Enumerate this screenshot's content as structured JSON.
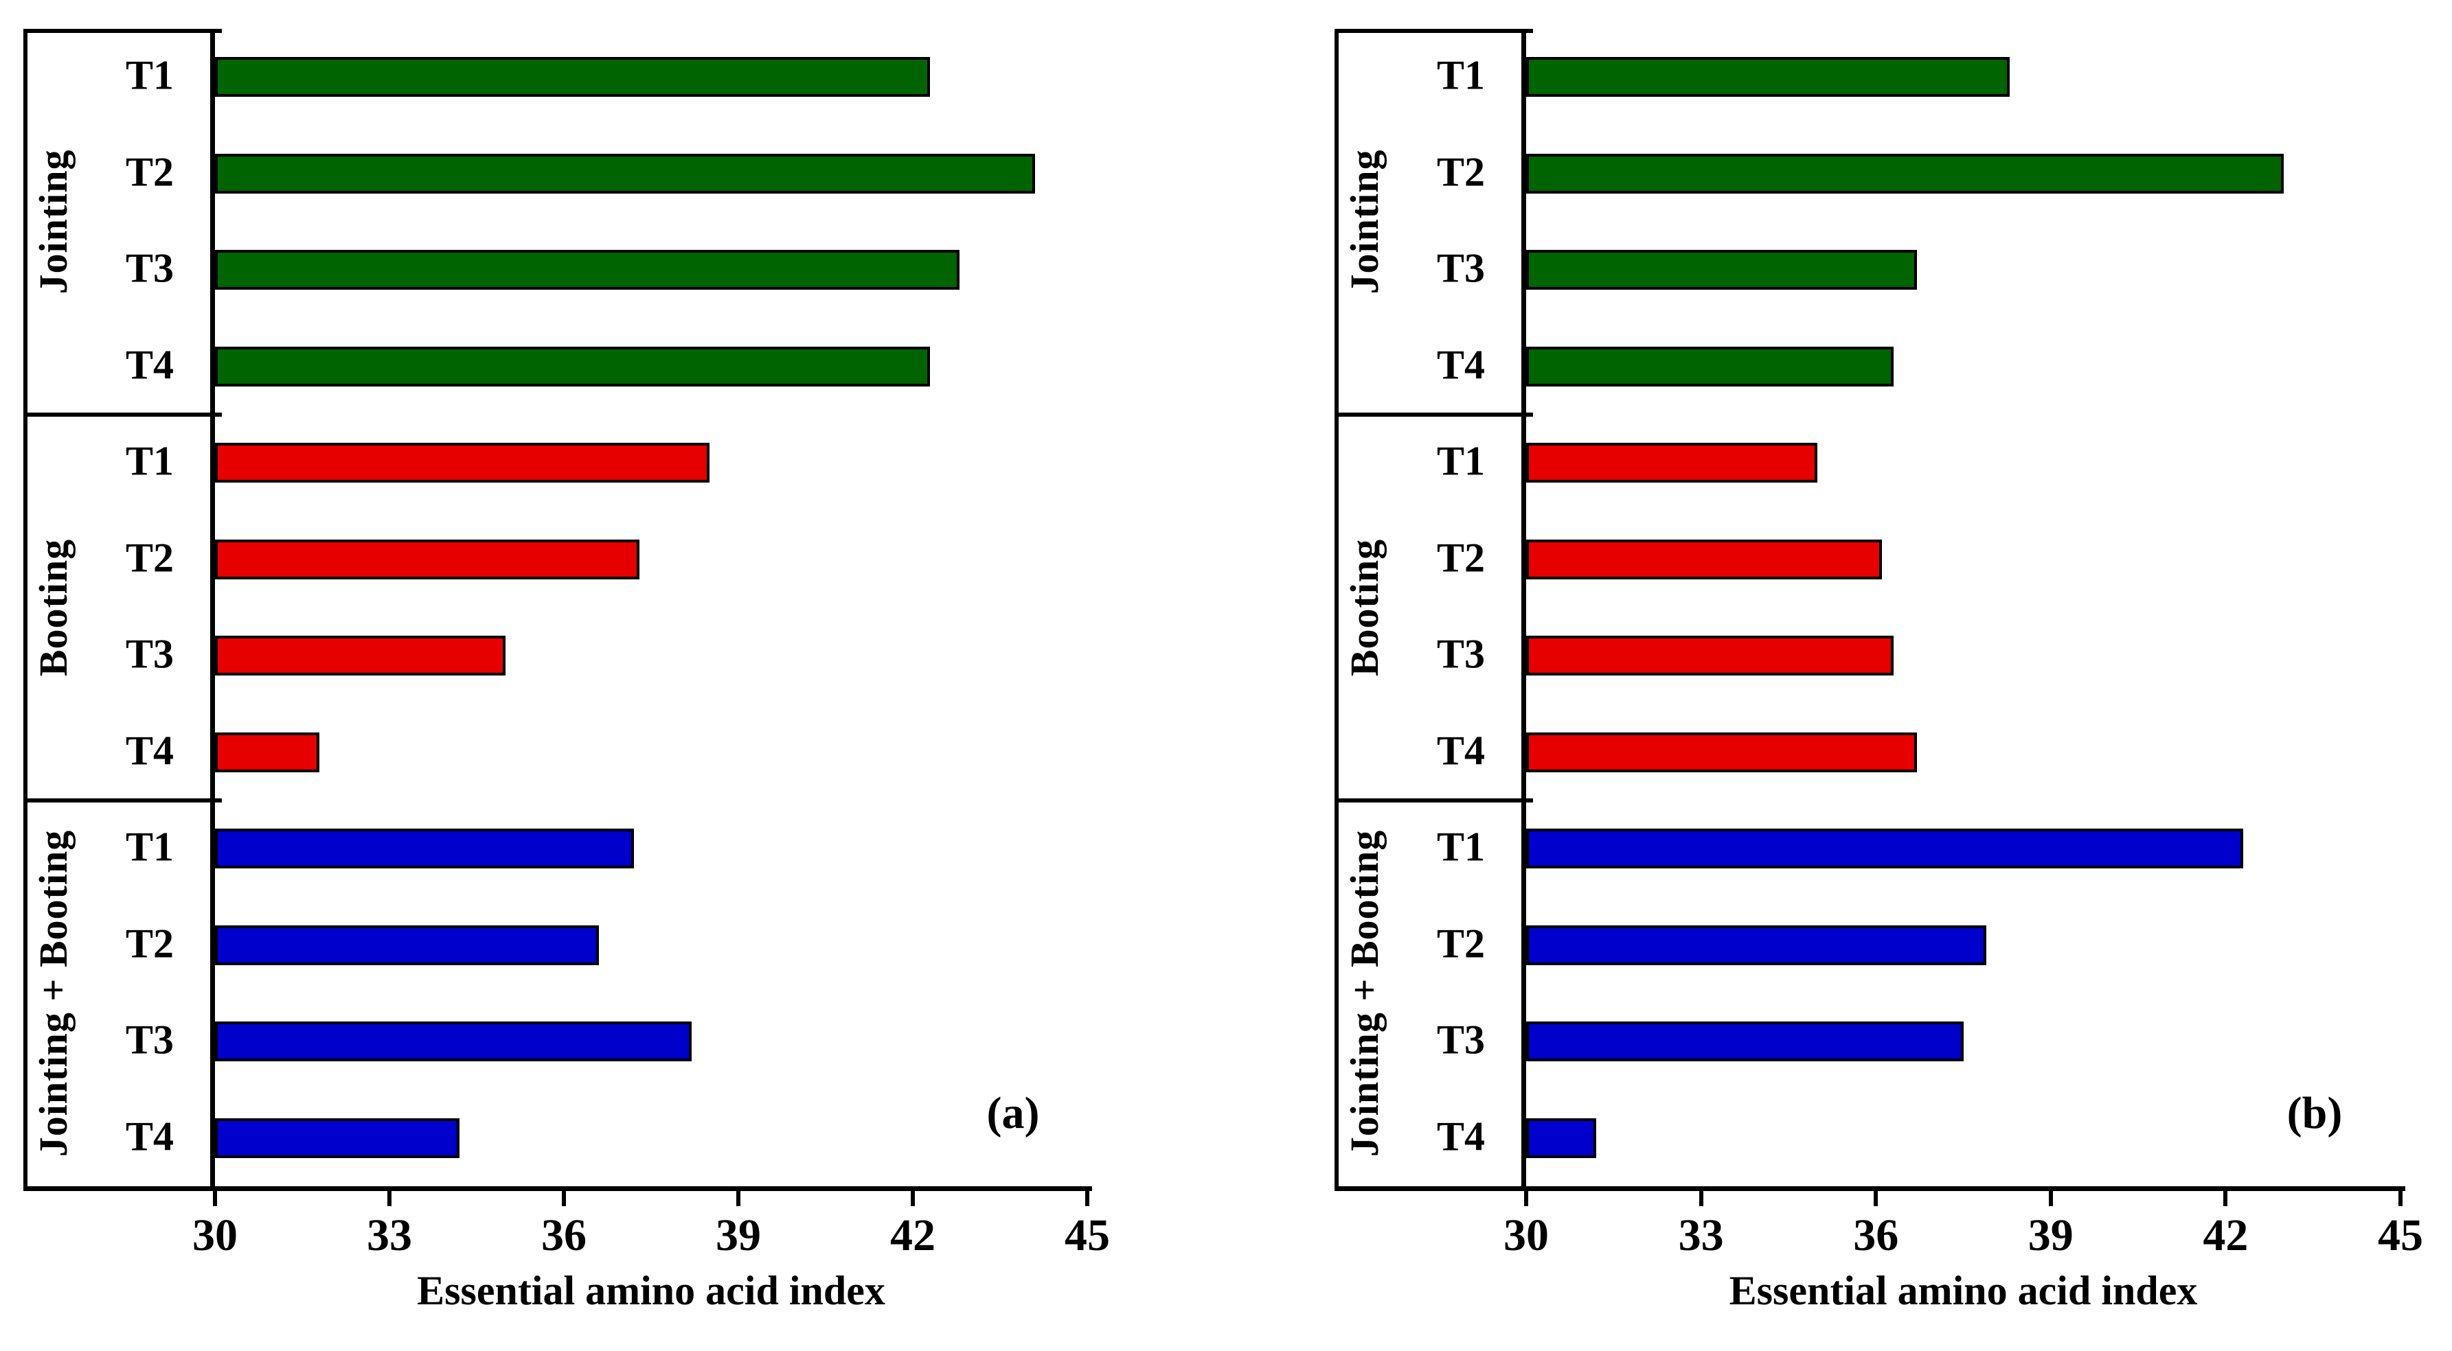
{
  "figure": {
    "background": "#ffffff",
    "axis_color": "#000000",
    "text_color": "#000000"
  },
  "chart_data": [
    {
      "type": "bar",
      "orientation": "horizontal",
      "panel_label": "(a)",
      "xlabel": "Essential amino acid index",
      "xlim": [
        30,
        45
      ],
      "xticks": [
        30,
        33,
        36,
        39,
        42,
        45
      ],
      "grid": false,
      "legend": "none",
      "bar_labels": [
        "T1",
        "T2",
        "T3",
        "T4"
      ],
      "groups": [
        {
          "name": "Jointing",
          "color": "#006400",
          "values": [
            42.3,
            44.1,
            42.8,
            42.3
          ]
        },
        {
          "name": "Booting",
          "color": "#e60000",
          "values": [
            38.5,
            37.3,
            35.0,
            31.8
          ]
        },
        {
          "name": "Jointing + Booting",
          "color": "#0000cd",
          "values": [
            37.2,
            36.6,
            38.2,
            34.2
          ]
        }
      ]
    },
    {
      "type": "bar",
      "orientation": "horizontal",
      "panel_label": "(b)",
      "xlabel": "Essential amino acid index",
      "xlim": [
        30,
        45
      ],
      "xticks": [
        30,
        33,
        36,
        39,
        42,
        45
      ],
      "grid": false,
      "legend": "none",
      "bar_labels": [
        "T1",
        "T2",
        "T3",
        "T4"
      ],
      "groups": [
        {
          "name": "Jointing",
          "color": "#006400",
          "values": [
            38.3,
            43.0,
            36.7,
            36.3
          ]
        },
        {
          "name": "Booting",
          "color": "#e60000",
          "values": [
            35.0,
            36.1,
            36.3,
            36.7
          ]
        },
        {
          "name": "Jointing + Booting",
          "color": "#0000cd",
          "values": [
            42.3,
            37.9,
            37.5,
            31.2
          ]
        }
      ]
    }
  ]
}
